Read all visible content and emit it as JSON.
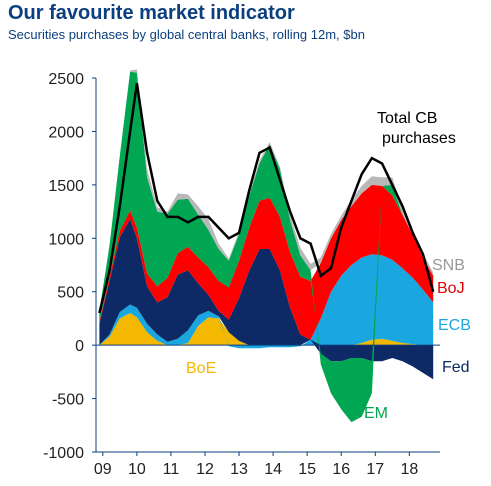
{
  "title": "Our favourite market indicator",
  "subtitle": "Securities purchases by global central banks, rolling 12m, $bn",
  "chart_data": {
    "type": "area",
    "ylim": [
      -1000,
      2500
    ],
    "yticks": [
      2500,
      2000,
      1500,
      1000,
      500,
      0,
      -500,
      -1000
    ],
    "xticks": [
      "09",
      "10",
      "11",
      "12",
      "13",
      "14",
      "15",
      "16",
      "17",
      "18"
    ],
    "x": [
      2008.9,
      2009.2,
      2009.5,
      2009.8,
      2010.0,
      2010.3,
      2010.6,
      2010.9,
      2011.2,
      2011.5,
      2011.8,
      2012.1,
      2012.4,
      2012.7,
      2013.0,
      2013.3,
      2013.6,
      2013.9,
      2014.2,
      2014.5,
      2014.8,
      2015.1,
      2015.4,
      2015.7,
      2016.0,
      2016.3,
      2016.6,
      2016.9,
      2017.2,
      2017.5,
      2017.8,
      2018.1,
      2018.4,
      2018.7
    ],
    "series": [
      {
        "name": "BoE",
        "color": "#f5b800",
        "values": [
          0,
          80,
          250,
          300,
          260,
          120,
          40,
          0,
          0,
          20,
          180,
          260,
          250,
          120,
          40,
          0,
          0,
          0,
          0,
          0,
          0,
          0,
          0,
          0,
          0,
          0,
          20,
          50,
          60,
          40,
          20,
          10,
          0,
          0
        ]
      },
      {
        "name": "ECB",
        "color": "#1aa7e0",
        "values": [
          0,
          20,
          60,
          80,
          90,
          80,
          60,
          30,
          60,
          120,
          100,
          60,
          20,
          -10,
          -30,
          -30,
          -30,
          -20,
          -20,
          -20,
          -10,
          50,
          250,
          500,
          650,
          750,
          800,
          800,
          780,
          760,
          700,
          620,
          520,
          400
        ]
      },
      {
        "name": "Fed",
        "color": "#0d2a66",
        "values": [
          200,
          500,
          700,
          800,
          650,
          350,
          300,
          420,
          600,
          560,
          300,
          150,
          50,
          120,
          400,
          700,
          900,
          900,
          700,
          350,
          100,
          0,
          -80,
          -150,
          -150,
          -120,
          -120,
          -150,
          -150,
          -120,
          -150,
          -200,
          -260,
          -320
        ]
      },
      {
        "name": "BoJ",
        "color": "#ff0000",
        "values": [
          20,
          40,
          60,
          80,
          100,
          120,
          150,
          180,
          200,
          220,
          240,
          260,
          280,
          300,
          350,
          400,
          450,
          480,
          500,
          520,
          540,
          550,
          520,
          500,
          520,
          550,
          600,
          650,
          650,
          600,
          500,
          400,
          300,
          250
        ]
      },
      {
        "name": "EM",
        "color": "#00a651",
        "values": [
          100,
          300,
          700,
          1300,
          1450,
          900,
          700,
          600,
          500,
          450,
          400,
          350,
          300,
          250,
          250,
          300,
          350,
          500,
          450,
          300,
          200,
          100,
          -100,
          -300,
          -450,
          -600,
          -550,
          -300,
          0,
          100,
          0,
          0,
          0,
          0
        ]
      },
      {
        "name": "SNB",
        "color": "#b8b8b8",
        "values": [
          0,
          0,
          0,
          10,
          30,
          80,
          40,
          20,
          60,
          40,
          80,
          100,
          50,
          20,
          20,
          20,
          30,
          20,
          20,
          50,
          70,
          60,
          50,
          40,
          40,
          60,
          70,
          80,
          80,
          70,
          60,
          50,
          40,
          30
        ]
      }
    ],
    "total": {
      "name": "Total CB purchases",
      "color": "#000000",
      "values": [
        300,
        700,
        1300,
        2000,
        2450,
        1800,
        1350,
        1200,
        1200,
        1150,
        1200,
        1200,
        1100,
        1000,
        1050,
        1450,
        1800,
        1850,
        1550,
        1250,
        1000,
        950,
        650,
        720,
        1100,
        1350,
        1600,
        1750,
        1700,
        1500,
        1300,
        1050,
        850,
        500
      ]
    },
    "labels": {
      "snb": "SNB",
      "boj": "BoJ",
      "ecb": "ECB",
      "fed": "Fed",
      "boe": "BoE",
      "em": "EM",
      "total": "Total CB purchases"
    }
  }
}
